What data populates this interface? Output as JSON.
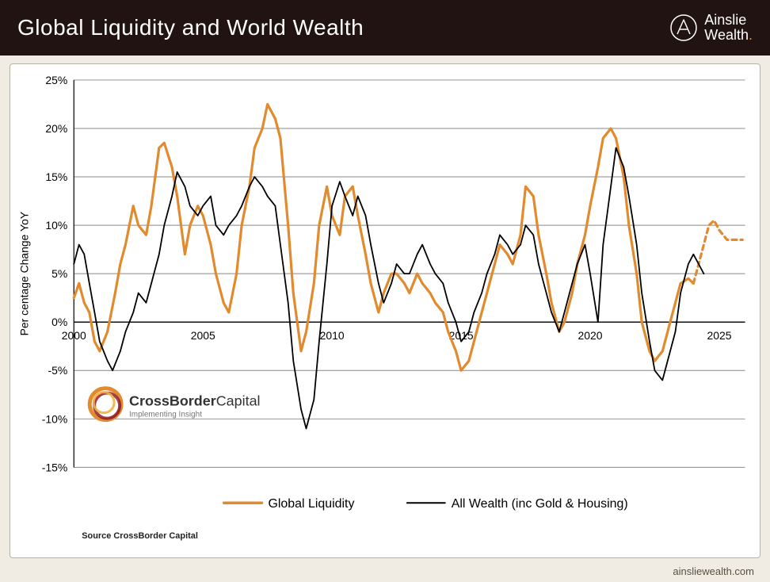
{
  "header": {
    "title": "Global Liquidity and World Wealth",
    "brand_line1": "Ainslie",
    "brand_line2": "Wealth"
  },
  "footer": {
    "url": "ainsliewealth.com",
    "source": "Source CrossBorder Capital"
  },
  "watermark": {
    "main": "CrossBorder",
    "main2": "Capital",
    "sub": "Implementing Insight"
  },
  "chart": {
    "type": "line",
    "background": "#ffffff",
    "plot_bg": "#ffffff",
    "grid_color": "#808080",
    "axis_color": "#000000",
    "y_axis": {
      "title": "Per centage Change YoY",
      "min": -15,
      "max": 25,
      "step": 5,
      "tick_format_suffix": "%"
    },
    "x_axis": {
      "min": 2000,
      "max": 2026,
      "ticks": [
        2000,
        2005,
        2010,
        2015,
        2020,
        2025
      ]
    },
    "legend": {
      "items": [
        {
          "label": "Global Liquidity",
          "color": "#e18a2e",
          "width": 3.5
        },
        {
          "label": "All Wealth (inc Gold & Housing)",
          "color": "#000000",
          "width": 2
        }
      ]
    },
    "series": [
      {
        "name": "Global Liquidity",
        "color": "#e18a2e",
        "width": 3.2,
        "dash": "none",
        "points": [
          [
            2000.0,
            2.5
          ],
          [
            2000.2,
            4
          ],
          [
            2000.4,
            2
          ],
          [
            2000.6,
            1
          ],
          [
            2000.8,
            -2
          ],
          [
            2001.0,
            -3
          ],
          [
            2001.3,
            -1
          ],
          [
            2001.6,
            3
          ],
          [
            2001.8,
            6
          ],
          [
            2002.0,
            8
          ],
          [
            2002.3,
            12
          ],
          [
            2002.5,
            10
          ],
          [
            2002.8,
            9
          ],
          [
            2003.0,
            12
          ],
          [
            2003.3,
            18
          ],
          [
            2003.5,
            18.5
          ],
          [
            2003.8,
            16
          ],
          [
            2004.0,
            13
          ],
          [
            2004.3,
            7
          ],
          [
            2004.5,
            10
          ],
          [
            2004.8,
            12
          ],
          [
            2005.0,
            11
          ],
          [
            2005.3,
            8
          ],
          [
            2005.5,
            5
          ],
          [
            2005.8,
            2
          ],
          [
            2006.0,
            1
          ],
          [
            2006.3,
            5
          ],
          [
            2006.5,
            10
          ],
          [
            2006.8,
            14
          ],
          [
            2007.0,
            18
          ],
          [
            2007.3,
            20
          ],
          [
            2007.5,
            22.5
          ],
          [
            2007.8,
            21
          ],
          [
            2008.0,
            19
          ],
          [
            2008.3,
            10
          ],
          [
            2008.5,
            3
          ],
          [
            2008.8,
            -3
          ],
          [
            2009.0,
            -1
          ],
          [
            2009.3,
            4
          ],
          [
            2009.5,
            10
          ],
          [
            2009.8,
            14
          ],
          [
            2010.0,
            11
          ],
          [
            2010.3,
            9
          ],
          [
            2010.5,
            13
          ],
          [
            2010.8,
            14
          ],
          [
            2011.0,
            11
          ],
          [
            2011.3,
            7
          ],
          [
            2011.5,
            4
          ],
          [
            2011.8,
            1
          ],
          [
            2012.0,
            3
          ],
          [
            2012.3,
            5
          ],
          [
            2012.5,
            5
          ],
          [
            2012.8,
            4
          ],
          [
            2013.0,
            3
          ],
          [
            2013.3,
            5
          ],
          [
            2013.5,
            4
          ],
          [
            2013.8,
            3
          ],
          [
            2014.0,
            2
          ],
          [
            2014.3,
            1
          ],
          [
            2014.5,
            -1
          ],
          [
            2014.8,
            -3
          ],
          [
            2015.0,
            -5
          ],
          [
            2015.3,
            -4
          ],
          [
            2015.5,
            -2
          ],
          [
            2015.8,
            1
          ],
          [
            2016.0,
            3
          ],
          [
            2016.3,
            6
          ],
          [
            2016.5,
            8
          ],
          [
            2016.8,
            7
          ],
          [
            2017.0,
            6
          ],
          [
            2017.3,
            9
          ],
          [
            2017.5,
            14
          ],
          [
            2017.8,
            13
          ],
          [
            2018.0,
            9
          ],
          [
            2018.3,
            5
          ],
          [
            2018.5,
            2
          ],
          [
            2018.8,
            -1
          ],
          [
            2019.0,
            0
          ],
          [
            2019.3,
            3
          ],
          [
            2019.5,
            6
          ],
          [
            2019.8,
            9
          ],
          [
            2020.0,
            12
          ],
          [
            2020.3,
            16
          ],
          [
            2020.5,
            19
          ],
          [
            2020.8,
            20
          ],
          [
            2021.0,
            19
          ],
          [
            2021.3,
            15
          ],
          [
            2021.5,
            10
          ],
          [
            2021.8,
            5
          ],
          [
            2022.0,
            0
          ],
          [
            2022.3,
            -3
          ],
          [
            2022.5,
            -4
          ],
          [
            2022.8,
            -3
          ],
          [
            2023.0,
            -1
          ],
          [
            2023.3,
            2
          ],
          [
            2023.5,
            4
          ],
          [
            2023.8,
            4.5
          ],
          [
            2024.0,
            4
          ]
        ]
      },
      {
        "name": "Global Liquidity Forecast",
        "color": "#e18a2e",
        "width": 3.2,
        "dash": "6,5",
        "points": [
          [
            2024.0,
            4
          ],
          [
            2024.2,
            6
          ],
          [
            2024.4,
            8
          ],
          [
            2024.6,
            10
          ],
          [
            2024.8,
            10.5
          ],
          [
            2025.0,
            9.5
          ],
          [
            2025.3,
            8.5
          ],
          [
            2025.6,
            8.5
          ],
          [
            2025.9,
            8.5
          ]
        ]
      },
      {
        "name": "All Wealth",
        "color": "#000000",
        "width": 1.8,
        "dash": "none",
        "points": [
          [
            2000.0,
            6
          ],
          [
            2000.2,
            8
          ],
          [
            2000.4,
            7
          ],
          [
            2000.6,
            4
          ],
          [
            2000.8,
            1
          ],
          [
            2001.0,
            -2
          ],
          [
            2001.3,
            -4
          ],
          [
            2001.5,
            -5
          ],
          [
            2001.8,
            -3
          ],
          [
            2002.0,
            -1
          ],
          [
            2002.3,
            1
          ],
          [
            2002.5,
            3
          ],
          [
            2002.8,
            2
          ],
          [
            2003.0,
            4
          ],
          [
            2003.3,
            7
          ],
          [
            2003.5,
            10
          ],
          [
            2003.8,
            13
          ],
          [
            2004.0,
            15.5
          ],
          [
            2004.3,
            14
          ],
          [
            2004.5,
            12
          ],
          [
            2004.8,
            11
          ],
          [
            2005.0,
            12
          ],
          [
            2005.3,
            13
          ],
          [
            2005.5,
            10
          ],
          [
            2005.8,
            9
          ],
          [
            2006.0,
            10
          ],
          [
            2006.3,
            11
          ],
          [
            2006.5,
            12
          ],
          [
            2006.8,
            14
          ],
          [
            2007.0,
            15
          ],
          [
            2007.3,
            14
          ],
          [
            2007.5,
            13
          ],
          [
            2007.8,
            12
          ],
          [
            2008.0,
            8
          ],
          [
            2008.3,
            2
          ],
          [
            2008.5,
            -4
          ],
          [
            2008.8,
            -9
          ],
          [
            2009.0,
            -11
          ],
          [
            2009.3,
            -8
          ],
          [
            2009.5,
            -2
          ],
          [
            2009.8,
            6
          ],
          [
            2010.0,
            12
          ],
          [
            2010.3,
            14.5
          ],
          [
            2010.5,
            13
          ],
          [
            2010.8,
            11
          ],
          [
            2011.0,
            13
          ],
          [
            2011.3,
            11
          ],
          [
            2011.5,
            8
          ],
          [
            2011.8,
            4
          ],
          [
            2012.0,
            2
          ],
          [
            2012.3,
            4
          ],
          [
            2012.5,
            6
          ],
          [
            2012.8,
            5
          ],
          [
            2013.0,
            5
          ],
          [
            2013.3,
            7
          ],
          [
            2013.5,
            8
          ],
          [
            2013.8,
            6
          ],
          [
            2014.0,
            5
          ],
          [
            2014.3,
            4
          ],
          [
            2014.5,
            2
          ],
          [
            2014.8,
            0
          ],
          [
            2015.0,
            -2
          ],
          [
            2015.3,
            -1
          ],
          [
            2015.5,
            1
          ],
          [
            2015.8,
            3
          ],
          [
            2016.0,
            5
          ],
          [
            2016.3,
            7
          ],
          [
            2016.5,
            9
          ],
          [
            2016.8,
            8
          ],
          [
            2017.0,
            7
          ],
          [
            2017.3,
            8
          ],
          [
            2017.5,
            10
          ],
          [
            2017.8,
            9
          ],
          [
            2018.0,
            6
          ],
          [
            2018.3,
            3
          ],
          [
            2018.5,
            1
          ],
          [
            2018.8,
            -1
          ],
          [
            2019.0,
            1
          ],
          [
            2019.3,
            4
          ],
          [
            2019.5,
            6
          ],
          [
            2019.8,
            8
          ],
          [
            2020.0,
            5
          ],
          [
            2020.3,
            0
          ],
          [
            2020.5,
            8
          ],
          [
            2020.8,
            14
          ],
          [
            2021.0,
            18
          ],
          [
            2021.3,
            16
          ],
          [
            2021.5,
            13
          ],
          [
            2021.8,
            8
          ],
          [
            2022.0,
            3
          ],
          [
            2022.3,
            -2
          ],
          [
            2022.5,
            -5
          ],
          [
            2022.8,
            -6
          ],
          [
            2023.0,
            -4
          ],
          [
            2023.3,
            -1
          ],
          [
            2023.5,
            3
          ],
          [
            2023.8,
            6
          ],
          [
            2024.0,
            7
          ],
          [
            2024.2,
            6
          ],
          [
            2024.4,
            5
          ]
        ]
      }
    ]
  }
}
